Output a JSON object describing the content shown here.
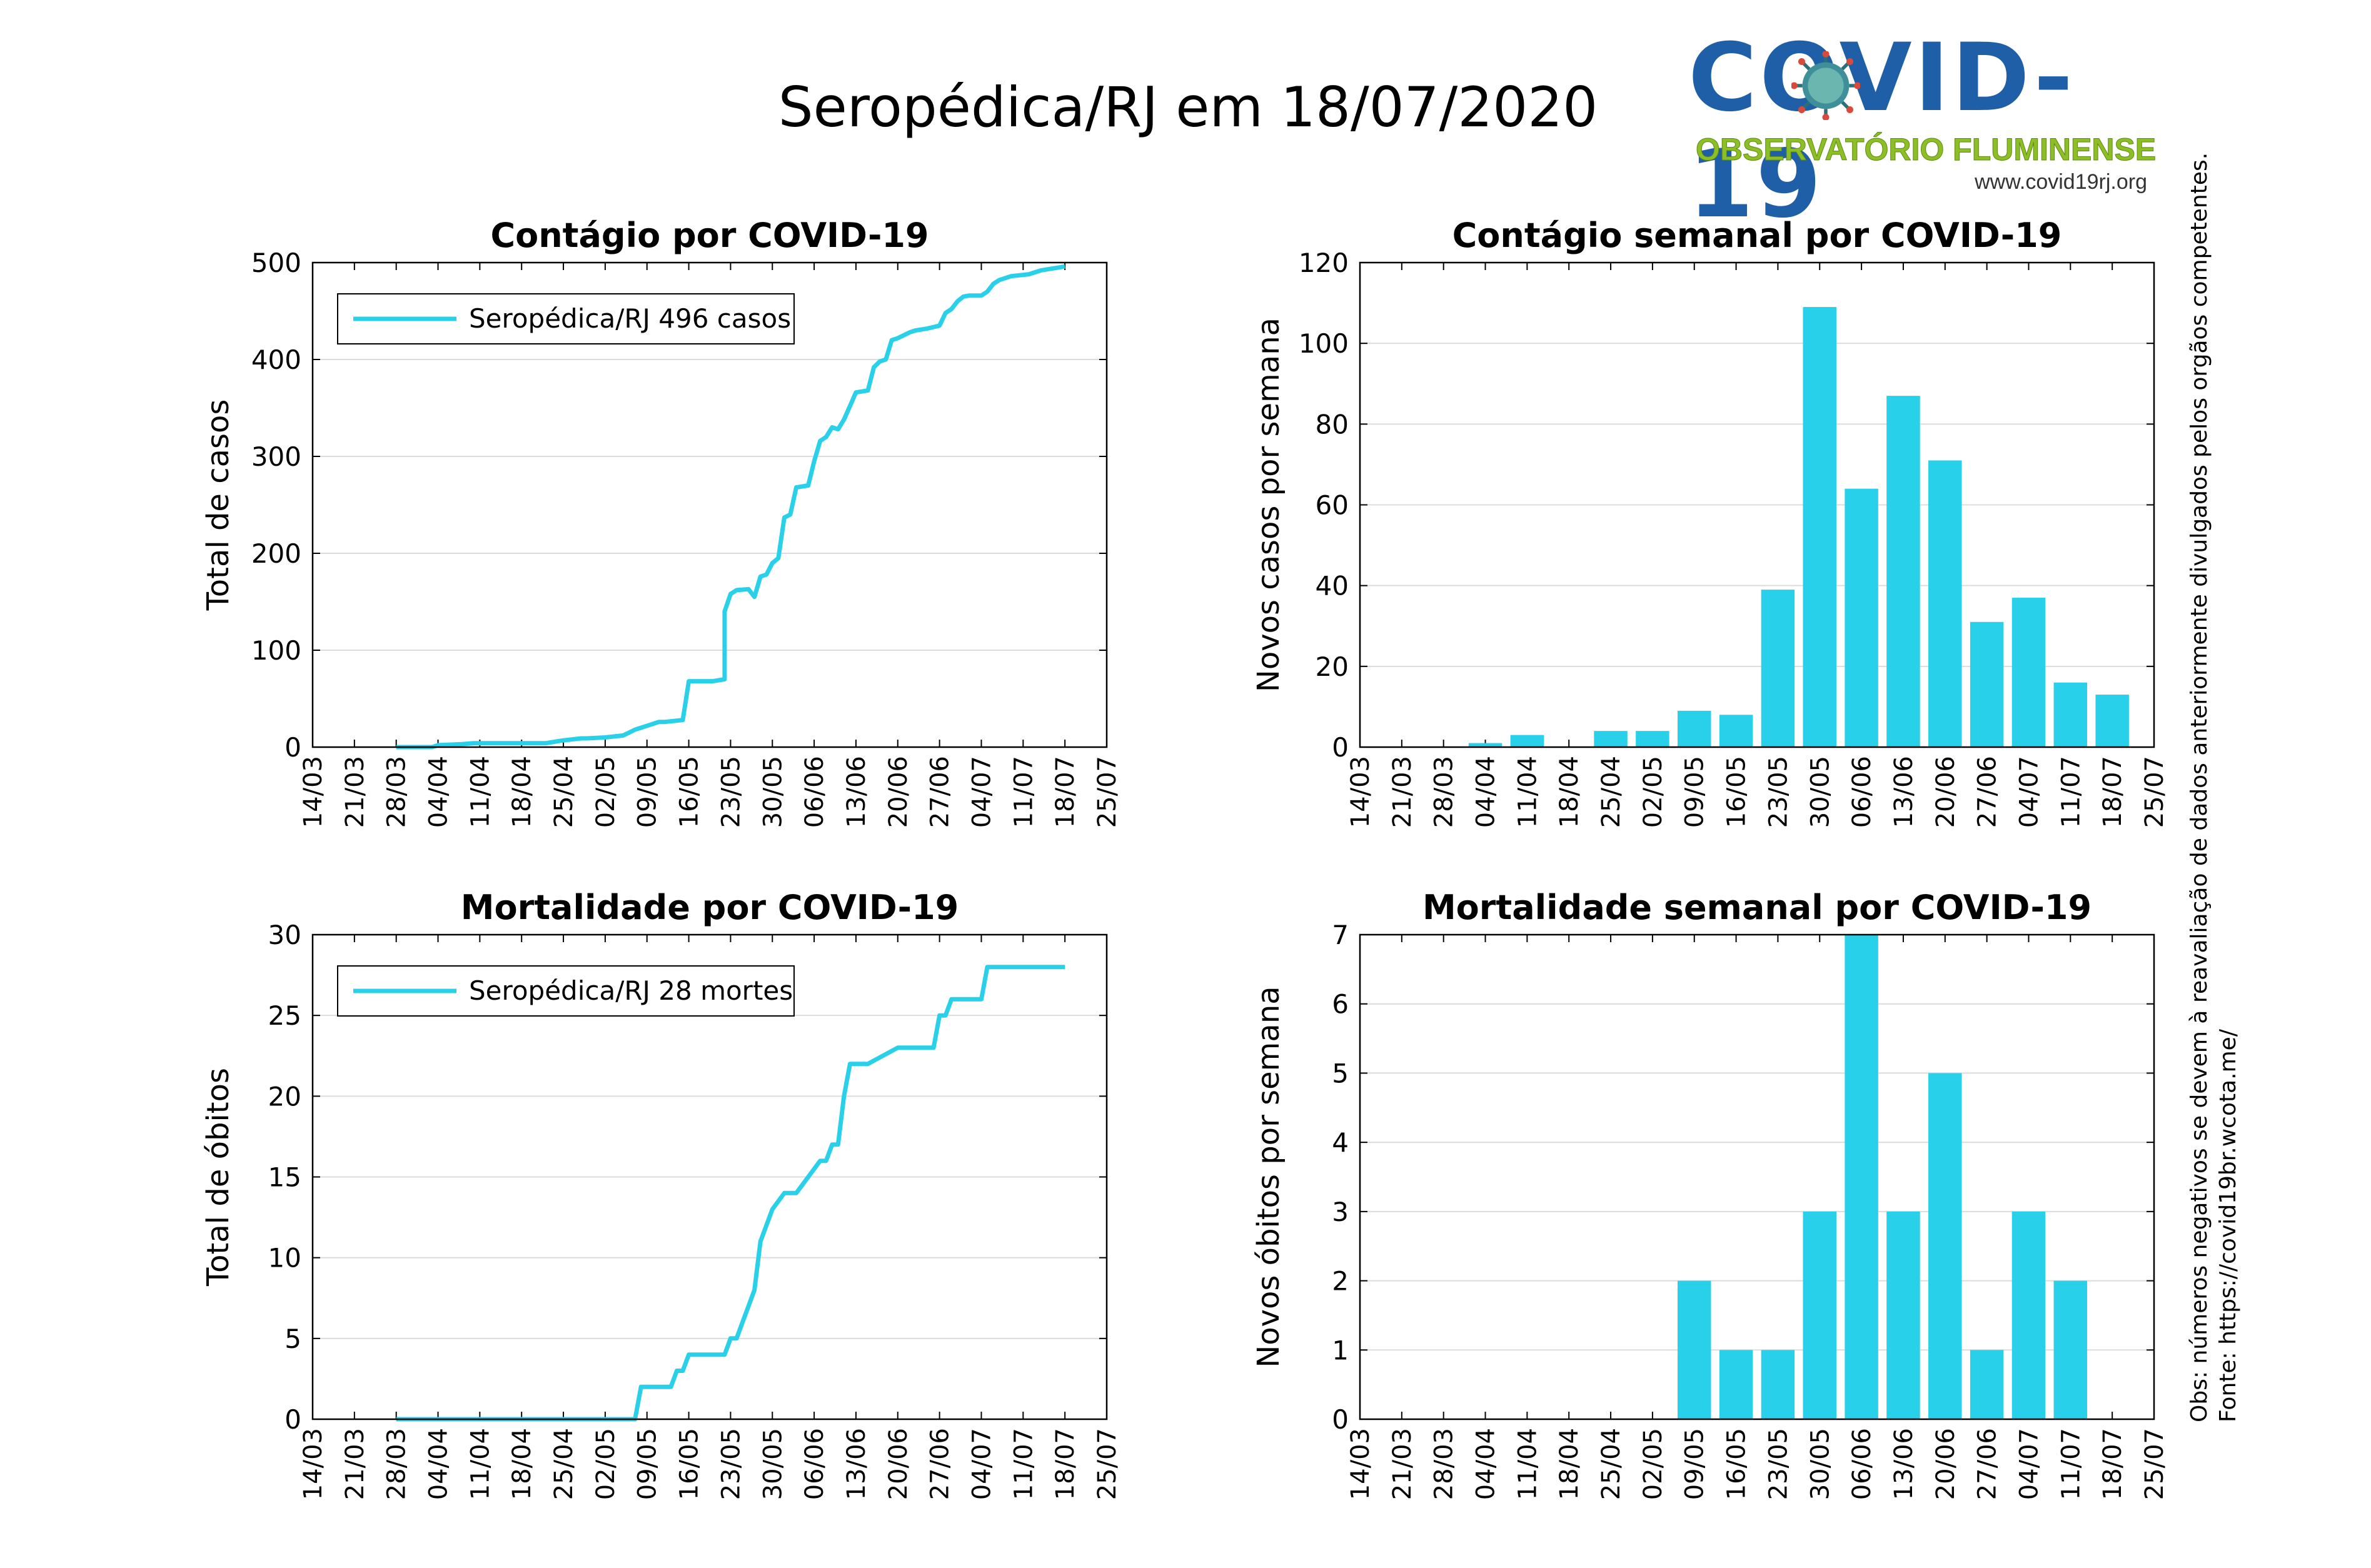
{
  "header": {
    "title": "Seropédica/RJ em 18/07/2020",
    "logo_title": "COVID-19",
    "logo_subtitle": "OBSERVATÓRIO FLUMINENSE",
    "logo_url": "www.covid19rj.org"
  },
  "side_note": {
    "source": "Fonte: https://covid19br.wcota.me/",
    "obs": "Obs: números negativos se devem à reavaliação de dados anteriormente divulgados pelos orgãos competentes."
  },
  "colors": {
    "series": "#29d0ea",
    "grid": "#dcdcdc",
    "logo_blue": "#1f5fa8",
    "logo_green": "#8cbf26"
  },
  "chart_data": [
    {
      "type": "line",
      "title": "Contágio por COVID-19",
      "xlabel": "",
      "ylabel": "Total de casos",
      "ylim": [
        0,
        500
      ],
      "yticks": [
        "0",
        "100",
        "200",
        "300",
        "400",
        "500"
      ],
      "xlim": [
        "14/03",
        "25/07"
      ],
      "xticks": [
        "14/03",
        "21/03",
        "28/03",
        "04/04",
        "11/04",
        "18/04",
        "25/04",
        "02/05",
        "09/05",
        "16/05",
        "23/05",
        "30/05",
        "06/06",
        "13/06",
        "20/06",
        "27/06",
        "04/07",
        "11/07",
        "18/07",
        "25/07"
      ],
      "grid": true,
      "legend": {
        "placement": "top-left",
        "label": "Seropédica/RJ  496 casos"
      },
      "series": [
        {
          "name": "Seropédica/RJ  496 casos",
          "x": [
            "28/03",
            "03/04",
            "04/04",
            "08/04",
            "10/04",
            "15/04",
            "20/04",
            "22/04",
            "24/04",
            "25/04",
            "28/04",
            "29/04",
            "02/05",
            "05/05",
            "06/05",
            "07/05",
            "08/05",
            "09/05",
            "10/05",
            "11/05",
            "12/05",
            "15/05",
            "16/05",
            "18/05",
            "20/05",
            "22/05",
            "22/05",
            "23/05",
            "24/05",
            "26/05",
            "27/05",
            "28/05",
            "29/05",
            "30/05",
            "31/05",
            "01/06",
            "02/06",
            "03/06",
            "05/06",
            "06/06",
            "07/06",
            "08/06",
            "09/06",
            "10/06",
            "11/06",
            "12/06",
            "13/06",
            "15/06",
            "16/06",
            "17/06",
            "18/06",
            "19/06",
            "20/06",
            "21/06",
            "22/06",
            "23/06",
            "25/06",
            "27/06",
            "28/06",
            "29/06",
            "30/06",
            "01/07",
            "02/07",
            "04/07",
            "05/07",
            "06/07",
            "07/07",
            "08/07",
            "09/07",
            "12/07",
            "13/07",
            "14/07",
            "16/07",
            "17/07",
            "18/07"
          ],
          "y": [
            0,
            0,
            2,
            3,
            4,
            4,
            4,
            4,
            6,
            7,
            9,
            9,
            10,
            12,
            15,
            18,
            20,
            22,
            24,
            26,
            26,
            28,
            68,
            68,
            68,
            70,
            140,
            158,
            162,
            163,
            155,
            176,
            178,
            190,
            195,
            237,
            240,
            268,
            270,
            295,
            316,
            320,
            330,
            328,
            338,
            352,
            366,
            368,
            392,
            398,
            400,
            420,
            422,
            425,
            428,
            430,
            432,
            435,
            448,
            452,
            460,
            465,
            466,
            466,
            470,
            478,
            482,
            484,
            486,
            488,
            490,
            492,
            494,
            495,
            496
          ]
        }
      ]
    },
    {
      "type": "bar",
      "title": "Contágio semanal por COVID-19",
      "xlabel": "",
      "ylabel": "Novos casos por semana",
      "ylim": [
        0,
        120
      ],
      "yticks": [
        "0",
        "20",
        "40",
        "60",
        "80",
        "100",
        "120"
      ],
      "xlim": [
        "14/03",
        "25/07"
      ],
      "xticks": [
        "14/03",
        "21/03",
        "28/03",
        "04/04",
        "11/04",
        "18/04",
        "25/04",
        "02/05",
        "09/05",
        "16/05",
        "23/05",
        "30/05",
        "06/06",
        "13/06",
        "20/06",
        "27/06",
        "04/07",
        "11/07",
        "18/07",
        "25/07"
      ],
      "grid": true,
      "categories": [
        "04/04",
        "11/04",
        "18/04",
        "25/04",
        "02/05",
        "09/05",
        "16/05",
        "23/05",
        "30/05",
        "06/06",
        "13/06",
        "20/06",
        "27/06",
        "04/07",
        "11/07",
        "18/07"
      ],
      "values": [
        1,
        3,
        0,
        4,
        4,
        9,
        8,
        39,
        109,
        64,
        87,
        71,
        31,
        37,
        16,
        13
      ]
    },
    {
      "type": "line",
      "title": "Mortalidade por COVID-19",
      "xlabel": "",
      "ylabel": "Total de óbitos",
      "ylim": [
        0,
        30
      ],
      "yticks": [
        "0",
        "5",
        "10",
        "15",
        "20",
        "25",
        "30"
      ],
      "xlim": [
        "14/03",
        "25/07"
      ],
      "xticks": [
        "14/03",
        "21/03",
        "28/03",
        "04/04",
        "11/04",
        "18/04",
        "25/04",
        "02/05",
        "09/05",
        "16/05",
        "23/05",
        "30/05",
        "06/06",
        "13/06",
        "20/06",
        "27/06",
        "04/07",
        "11/07",
        "18/07",
        "25/07"
      ],
      "grid": true,
      "legend": {
        "placement": "top-left",
        "label": "Seropédica/RJ  28 mortes"
      },
      "series": [
        {
          "name": "Seropédica/RJ  28 mortes",
          "x": [
            "28/03",
            "07/05",
            "08/05",
            "13/05",
            "14/05",
            "15/05",
            "16/05",
            "17/05",
            "22/05",
            "23/05",
            "24/05",
            "25/05",
            "26/05",
            "27/05",
            "28/05",
            "29/05",
            "30/05",
            "01/06",
            "02/06",
            "03/06",
            "07/06",
            "08/06",
            "09/06",
            "10/06",
            "11/06",
            "12/06",
            "13/06",
            "14/06",
            "15/06",
            "20/06",
            "21/06",
            "26/06",
            "27/06",
            "28/06",
            "29/06",
            "04/07",
            "05/07",
            "18/07"
          ],
          "y": [
            0,
            0,
            2,
            2,
            3,
            3,
            4,
            4,
            4,
            5,
            5,
            6,
            7,
            8,
            11,
            12,
            13,
            14,
            14,
            14,
            16,
            16,
            17,
            17,
            20,
            22,
            22,
            22,
            22,
            23,
            23,
            23,
            25,
            25,
            26,
            26,
            28,
            28
          ]
        }
      ]
    },
    {
      "type": "bar",
      "title": "Mortalidade semanal por COVID-19",
      "xlabel": "",
      "ylabel": "Novos óbitos por semana",
      "ylim": [
        0,
        7
      ],
      "yticks": [
        "0",
        "1",
        "2",
        "3",
        "4",
        "5",
        "6",
        "7"
      ],
      "xlim": [
        "14/03",
        "25/07"
      ],
      "xticks": [
        "14/03",
        "21/03",
        "28/03",
        "04/04",
        "11/04",
        "18/04",
        "25/04",
        "02/05",
        "09/05",
        "16/05",
        "23/05",
        "30/05",
        "06/06",
        "13/06",
        "20/06",
        "27/06",
        "04/07",
        "11/07",
        "18/07",
        "25/07"
      ],
      "grid": true,
      "categories": [
        "09/05",
        "16/05",
        "23/05",
        "30/05",
        "06/06",
        "13/06",
        "20/06",
        "27/06",
        "04/07",
        "11/07"
      ],
      "values": [
        2,
        1,
        1,
        3,
        7,
        3,
        5,
        1,
        3,
        2
      ]
    }
  ]
}
